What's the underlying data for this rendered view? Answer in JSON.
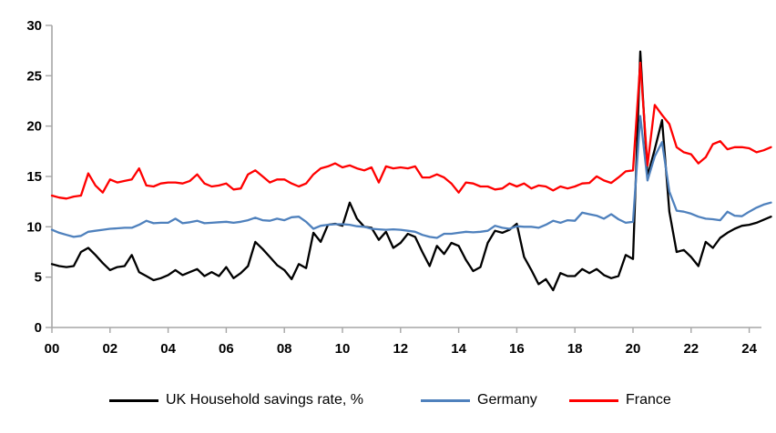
{
  "chart_data": {
    "type": "line",
    "title": "",
    "x_axis": {
      "start_year": 2000,
      "step_years": 0.25,
      "tick_year_offsets": [
        0,
        2,
        4,
        6,
        8,
        10,
        12,
        14,
        16,
        18,
        20,
        22,
        24
      ],
      "tick_labels": [
        "00",
        "02",
        "04",
        "06",
        "08",
        "10",
        "12",
        "14",
        "16",
        "18",
        "20",
        "22",
        "24"
      ],
      "range_years": [
        0,
        24.75
      ]
    },
    "y_axis": {
      "ticks": [
        0,
        5,
        10,
        15,
        20,
        25,
        30
      ],
      "tick_labels": [
        "0",
        "5",
        "10",
        "15",
        "20",
        "25",
        "30"
      ],
      "range": [
        0,
        30
      ]
    },
    "legend_position": "bottom",
    "grid": false,
    "legend": [
      "UK Household savings rate, %",
      "Germany",
      "France"
    ],
    "series": [
      {
        "name": "UK Household savings rate, %",
        "color": "#000000",
        "values": [
          6.3,
          6.1,
          6.0,
          6.1,
          7.5,
          7.9,
          7.2,
          6.4,
          5.7,
          6.0,
          6.1,
          7.2,
          5.5,
          5.1,
          4.7,
          4.9,
          5.2,
          5.7,
          5.2,
          5.5,
          5.8,
          5.1,
          5.5,
          5.1,
          6.0,
          4.9,
          5.4,
          6.1,
          8.5,
          7.8,
          7.0,
          6.2,
          5.7,
          4.8,
          6.3,
          5.9,
          9.4,
          8.5,
          10.2,
          10.3,
          10.1,
          12.4,
          10.8,
          10.0,
          9.9,
          8.7,
          9.5,
          7.9,
          8.4,
          9.3,
          9.0,
          7.5,
          6.1,
          8.1,
          7.3,
          8.4,
          8.1,
          6.7,
          5.6,
          6.0,
          8.4,
          9.6,
          9.4,
          9.7,
          10.3,
          7.0,
          5.7,
          4.3,
          4.8,
          3.7,
          5.4,
          5.1,
          5.1,
          5.8,
          5.4,
          5.8,
          5.2,
          4.9,
          5.1,
          7.2,
          6.8,
          27.4,
          15.0,
          17.7,
          20.6,
          11.5,
          7.5,
          7.7,
          7.0,
          6.1,
          8.5,
          7.9,
          8.9,
          9.4,
          9.8,
          10.1,
          10.2,
          10.4,
          10.7,
          11.0
        ]
      },
      {
        "name": "Germany",
        "color": "#4F81BD",
        "values": [
          9.7,
          9.4,
          9.2,
          9.0,
          9.1,
          9.5,
          9.6,
          9.7,
          9.8,
          9.85,
          9.9,
          9.9,
          10.2,
          10.6,
          10.35,
          10.4,
          10.4,
          10.8,
          10.35,
          10.45,
          10.6,
          10.35,
          10.4,
          10.45,
          10.5,
          10.4,
          10.5,
          10.65,
          10.9,
          10.65,
          10.6,
          10.8,
          10.65,
          10.95,
          11.0,
          10.5,
          9.8,
          10.1,
          10.2,
          10.25,
          10.25,
          10.2,
          10.05,
          10.0,
          9.8,
          9.75,
          9.7,
          9.75,
          9.7,
          9.6,
          9.5,
          9.2,
          9.0,
          8.9,
          9.3,
          9.3,
          9.4,
          9.5,
          9.45,
          9.5,
          9.6,
          10.1,
          9.9,
          9.8,
          10.05,
          10.0,
          10.0,
          9.9,
          10.2,
          10.6,
          10.4,
          10.65,
          10.6,
          11.4,
          11.25,
          11.1,
          10.8,
          11.25,
          10.75,
          10.4,
          10.5,
          21.0,
          14.6,
          17.0,
          18.4,
          13.5,
          11.6,
          11.5,
          11.3,
          11.0,
          10.8,
          10.75,
          10.65,
          11.5,
          11.1,
          11.05,
          11.5,
          11.9,
          12.2,
          12.4
        ]
      },
      {
        "name": "France",
        "color": "#FF0000",
        "values": [
          13.1,
          12.9,
          12.8,
          13.0,
          13.1,
          15.3,
          14.1,
          13.4,
          14.7,
          14.4,
          14.55,
          14.7,
          15.8,
          14.1,
          14.0,
          14.3,
          14.4,
          14.4,
          14.3,
          14.55,
          15.2,
          14.3,
          14.0,
          14.1,
          14.3,
          13.7,
          13.8,
          15.2,
          15.6,
          15.0,
          14.4,
          14.7,
          14.7,
          14.3,
          14.0,
          14.3,
          15.2,
          15.8,
          16.0,
          16.3,
          15.9,
          16.1,
          15.8,
          15.6,
          15.9,
          14.4,
          16.0,
          15.8,
          15.9,
          15.8,
          16.0,
          14.9,
          14.9,
          15.2,
          14.9,
          14.3,
          13.4,
          14.4,
          14.3,
          14.0,
          14.0,
          13.7,
          13.8,
          14.3,
          14.0,
          14.3,
          13.8,
          14.1,
          14.0,
          13.6,
          14.0,
          13.8,
          14.0,
          14.3,
          14.35,
          15.0,
          14.6,
          14.35,
          14.9,
          15.5,
          15.6,
          26.3,
          16.1,
          22.1,
          21.1,
          20.2,
          17.9,
          17.4,
          17.2,
          16.3,
          16.9,
          18.2,
          18.5,
          17.7,
          17.9,
          17.9,
          17.8,
          17.4,
          17.6,
          17.9
        ]
      }
    ]
  },
  "colors": {
    "axis": "#A6A6A6",
    "background": "#FFFFFF",
    "tick_text": "#000000"
  }
}
